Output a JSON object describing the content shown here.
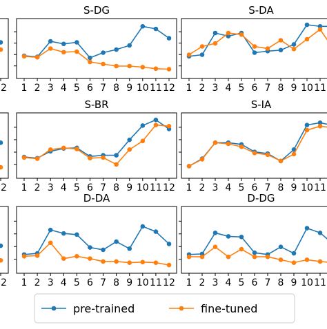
{
  "colors": {
    "pre_trained": "#1f77b4",
    "fine_tuned": "#ff7f0e"
  },
  "legend": {
    "items": [
      {
        "label": "pre-trained",
        "color": "#1f77b4"
      },
      {
        "label": "fine-tuned",
        "color": "#ff7f0e"
      }
    ]
  },
  "chart_data": [
    {
      "type": "line",
      "title": "",
      "x": [
        1,
        2,
        3,
        4,
        5,
        6,
        7,
        8,
        9,
        10,
        11,
        12
      ],
      "xtick_labels": [
        "",
        "",
        "",
        "",
        "",
        "",
        "",
        "",
        "",
        "",
        "",
        "12"
      ],
      "series": [
        {
          "name": "pre-trained",
          "values": [
            null,
            null,
            null,
            null,
            null,
            null,
            null,
            null,
            null,
            null,
            null,
            0.62
          ]
        },
        {
          "name": "fine-tuned",
          "values": [
            null,
            null,
            null,
            null,
            null,
            null,
            null,
            null,
            null,
            null,
            null,
            0.48
          ]
        }
      ]
    },
    {
      "type": "line",
      "title": "S-DG",
      "x": [
        1,
        2,
        3,
        4,
        5,
        6,
        7,
        8,
        9,
        10,
        11,
        12
      ],
      "xtick_labels": [
        "1",
        "2",
        "3",
        "4",
        "5",
        "6",
        "7",
        "8",
        "9",
        "10",
        "11",
        "12"
      ],
      "series": [
        {
          "name": "pre-trained",
          "values": [
            0.36,
            0.34,
            0.64,
            0.59,
            0.62,
            0.32,
            0.42,
            0.48,
            0.56,
            0.93,
            0.88,
            0.7
          ]
        },
        {
          "name": "fine-tuned",
          "values": [
            0.35,
            0.33,
            0.5,
            0.43,
            0.44,
            0.24,
            0.2,
            0.16,
            0.16,
            0.14,
            0.11,
            0.1
          ]
        }
      ]
    },
    {
      "type": "line",
      "title": "S-DA",
      "x": [
        1,
        2,
        3,
        4,
        5,
        6,
        7,
        8,
        9,
        10,
        11,
        12
      ],
      "xtick_labels": [
        "1",
        "2",
        "3",
        "4",
        "5",
        "6",
        "7",
        "8",
        "9",
        "10",
        "11",
        "12"
      ],
      "series": [
        {
          "name": "pre-trained",
          "values": [
            0.35,
            0.38,
            0.8,
            0.74,
            0.8,
            0.42,
            0.45,
            0.47,
            0.58,
            0.96,
            0.93,
            0.93
          ]
        },
        {
          "name": "fine-tuned",
          "values": [
            0.38,
            0.54,
            0.6,
            0.8,
            0.77,
            0.54,
            0.5,
            0.66,
            0.49,
            0.68,
            0.87,
            0.5
          ]
        }
      ]
    },
    {
      "type": "line",
      "title": "",
      "x": [
        1,
        2,
        3,
        4,
        5,
        6,
        7,
        8,
        9,
        10,
        11,
        12
      ],
      "xtick_labels": [
        "",
        "",
        "",
        "",
        "",
        "",
        "",
        "",
        "",
        "",
        "",
        "12"
      ],
      "series": [
        {
          "name": "pre-trained",
          "values": [
            null,
            null,
            null,
            null,
            null,
            null,
            null,
            null,
            null,
            null,
            null,
            0.55
          ]
        },
        {
          "name": "fine-tuned",
          "values": [
            null,
            null,
            null,
            null,
            null,
            null,
            null,
            null,
            null,
            null,
            null,
            0.12
          ]
        }
      ]
    },
    {
      "type": "line",
      "title": "S-BR",
      "x": [
        1,
        2,
        3,
        4,
        5,
        6,
        7,
        8,
        9,
        10,
        11,
        12
      ],
      "xtick_labels": [
        "1",
        "2",
        "3",
        "4",
        "5",
        "6",
        "7",
        "8",
        "9",
        "10",
        "11",
        "12"
      ],
      "series": [
        {
          "name": "pre-trained",
          "values": [
            0.3,
            0.28,
            0.4,
            0.45,
            0.46,
            0.31,
            0.33,
            0.33,
            0.6,
            0.85,
            0.95,
            0.79
          ]
        },
        {
          "name": "fine-tuned",
          "values": [
            0.29,
            0.27,
            0.43,
            0.46,
            0.44,
            0.28,
            0.29,
            0.17,
            0.43,
            0.58,
            0.86,
            0.84
          ]
        }
      ]
    },
    {
      "type": "line",
      "title": "S-IA",
      "x": [
        1,
        2,
        3,
        4,
        5,
        6,
        7,
        8,
        9,
        10,
        11,
        12
      ],
      "xtick_labels": [
        "1",
        "2",
        "3",
        "4",
        "5",
        "6",
        "7",
        "8",
        "9",
        "10",
        "11",
        "12"
      ],
      "series": [
        {
          "name": "pre-trained",
          "values": [
            0.14,
            0.27,
            0.55,
            0.55,
            0.52,
            0.39,
            0.36,
            0.23,
            0.43,
            0.86,
            0.9,
            0.85
          ]
        },
        {
          "name": "fine-tuned",
          "values": [
            0.14,
            0.26,
            0.55,
            0.53,
            0.48,
            0.37,
            0.34,
            0.23,
            0.35,
            0.77,
            0.84,
            0.81
          ]
        }
      ]
    },
    {
      "type": "line",
      "title": "",
      "x": [
        1,
        2,
        3,
        4,
        5,
        6,
        7,
        8,
        9,
        10,
        11,
        12
      ],
      "xtick_labels": [
        "",
        "",
        "",
        "",
        "",
        "",
        "",
        "",
        "",
        "",
        "",
        "12"
      ],
      "series": [
        {
          "name": "pre-trained",
          "values": [
            null,
            null,
            null,
            null,
            null,
            null,
            null,
            null,
            null,
            null,
            null,
            0.4
          ]
        },
        {
          "name": "fine-tuned",
          "values": [
            null,
            null,
            null,
            null,
            null,
            null,
            null,
            null,
            null,
            null,
            null,
            0.15
          ]
        }
      ]
    },
    {
      "type": "line",
      "title": "D-DA",
      "x": [
        1,
        2,
        3,
        4,
        5,
        6,
        7,
        8,
        9,
        10,
        11,
        12
      ],
      "xtick_labels": [
        "1",
        "2",
        "3",
        "4",
        "5",
        "6",
        "7",
        "8",
        "9",
        "10",
        "11",
        "12"
      ],
      "series": [
        {
          "name": "pre-trained",
          "values": [
            0.25,
            0.27,
            0.67,
            0.61,
            0.59,
            0.37,
            0.33,
            0.47,
            0.35,
            0.73,
            0.64,
            0.43
          ]
        },
        {
          "name": "fine-tuned",
          "values": [
            0.22,
            0.23,
            0.45,
            0.18,
            0.22,
            0.18,
            0.13,
            0.13,
            0.11,
            0.12,
            0.11,
            0.07
          ]
        }
      ]
    },
    {
      "type": "line",
      "title": "D-DG",
      "x": [
        1,
        2,
        3,
        4,
        5,
        6,
        7,
        8,
        9,
        10,
        11,
        12
      ],
      "xtick_labels": [
        "1",
        "2",
        "3",
        "4",
        "5",
        "6",
        "7",
        "8",
        "9",
        "10",
        "11",
        "12"
      ],
      "series": [
        {
          "name": "pre-trained",
          "values": [
            0.25,
            0.26,
            0.62,
            0.56,
            0.55,
            0.28,
            0.25,
            0.38,
            0.27,
            0.7,
            0.62,
            0.43
          ]
        },
        {
          "name": "fine-tuned",
          "values": [
            0.21,
            0.21,
            0.38,
            0.21,
            0.34,
            0.21,
            0.21,
            0.16,
            0.11,
            0.16,
            0.13,
            0.11
          ]
        }
      ]
    }
  ]
}
